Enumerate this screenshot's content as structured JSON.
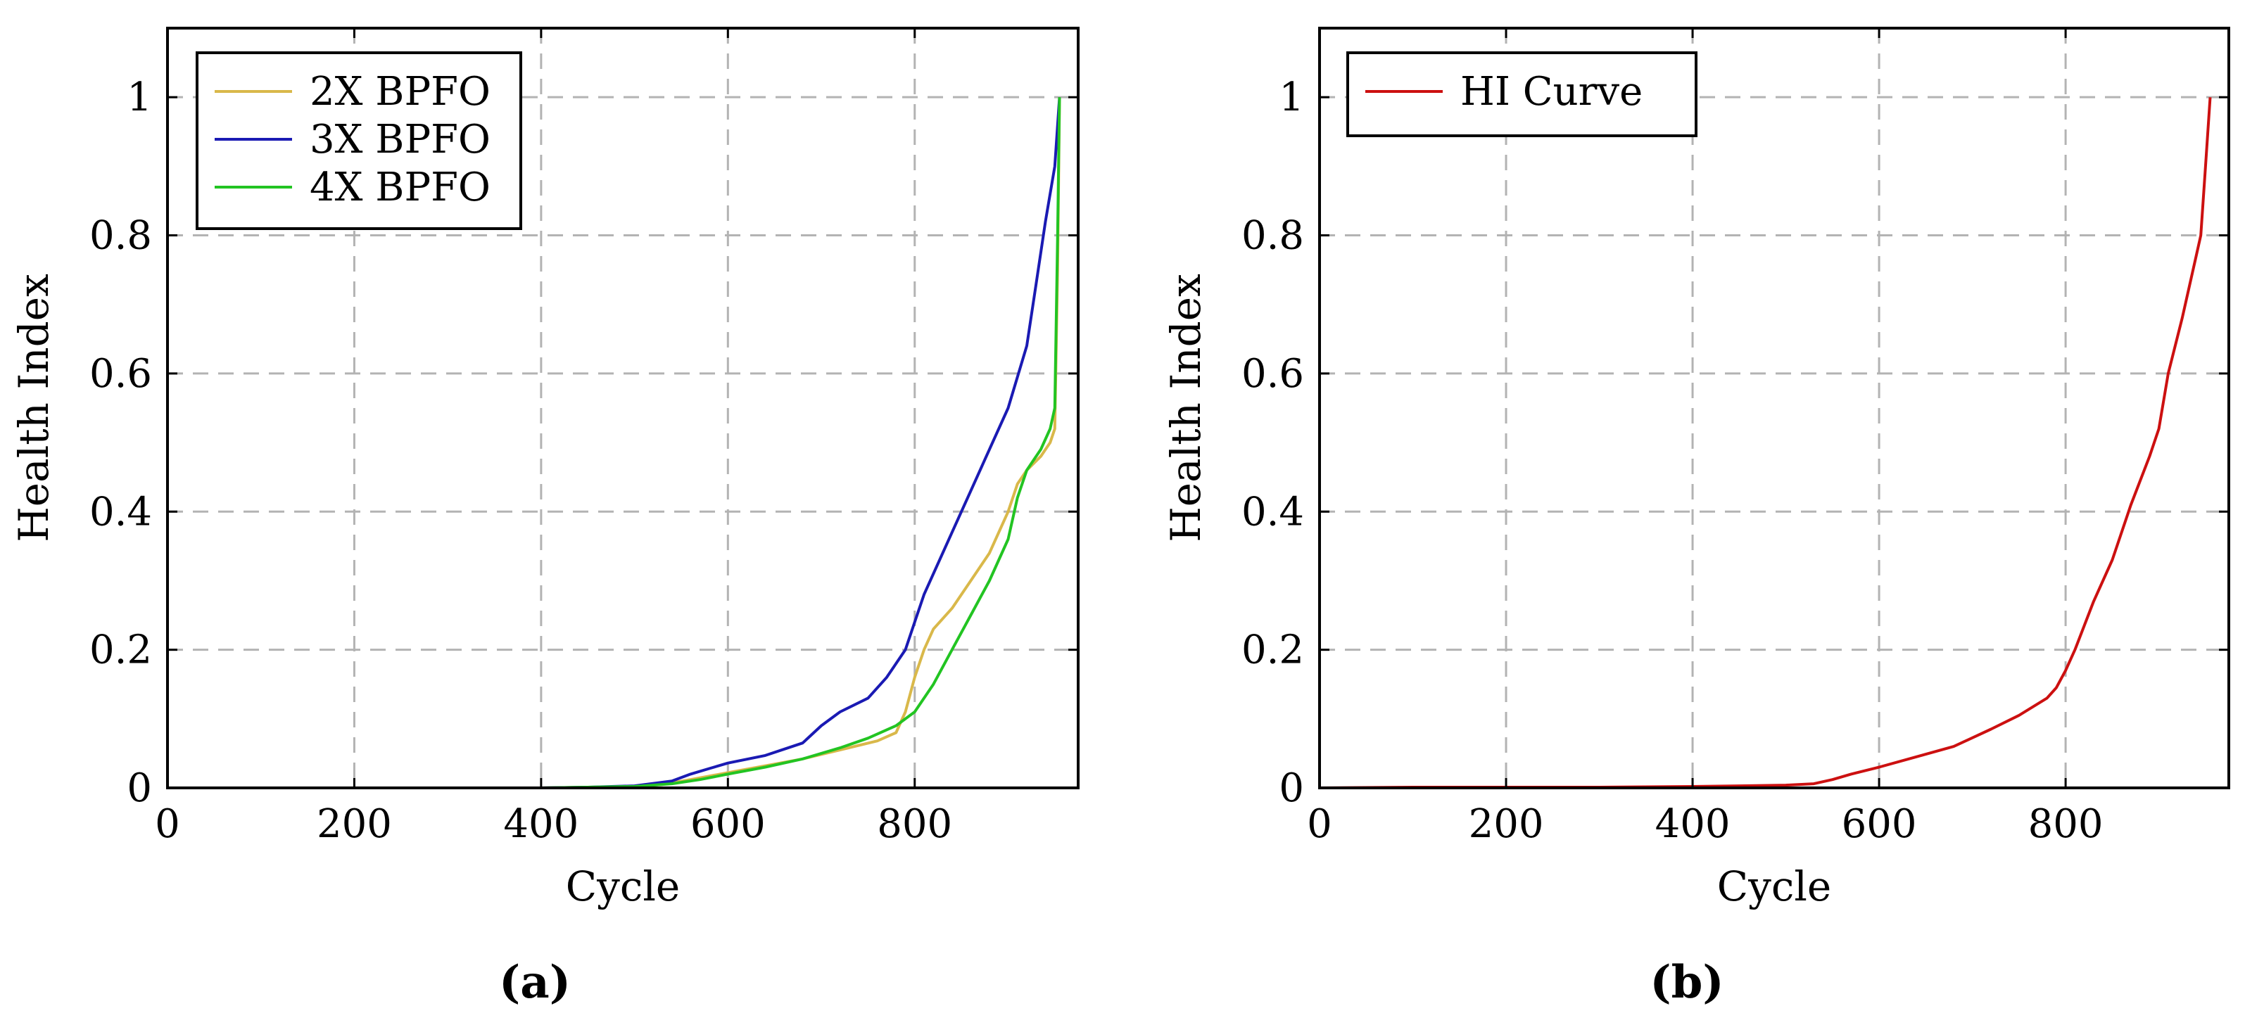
{
  "chart_data": [
    {
      "panel": "(a)",
      "type": "line",
      "title": "",
      "xlabel": "Cycle",
      "ylabel": "Health Index",
      "xlim": [
        0,
        975
      ],
      "ylim": [
        0,
        1.1
      ],
      "xticks": [
        0,
        200,
        400,
        600,
        800
      ],
      "yticks": [
        0,
        0.2,
        0.4,
        0.6,
        0.8,
        1
      ],
      "xtick_labels": [
        "0",
        "200",
        "400",
        "600",
        "800"
      ],
      "ytick_labels": [
        "0",
        "0.2",
        "0.4",
        "0.6",
        "0.8",
        "1"
      ],
      "grid": true,
      "legend_position": "top-left",
      "series": [
        {
          "name": "2X BPFO",
          "color": "#d9b84a",
          "x": [
            0,
            100,
            200,
            300,
            400,
            450,
            500,
            530,
            560,
            600,
            640,
            680,
            720,
            760,
            780,
            790,
            800,
            810,
            820,
            840,
            860,
            880,
            900,
            910,
            920,
            935,
            945,
            950,
            953,
            955
          ],
          "y": [
            0,
            0,
            0,
            0,
            0,
            0.001,
            0.002,
            0.005,
            0.012,
            0.022,
            0.032,
            0.042,
            0.055,
            0.068,
            0.08,
            0.11,
            0.16,
            0.2,
            0.23,
            0.26,
            0.3,
            0.34,
            0.4,
            0.44,
            0.46,
            0.48,
            0.5,
            0.52,
            0.75,
            1.0
          ]
        },
        {
          "name": "3X BPFO",
          "color": "#1a1ab3",
          "x": [
            0,
            100,
            200,
            300,
            400,
            450,
            500,
            540,
            560,
            580,
            600,
            640,
            680,
            700,
            720,
            750,
            770,
            780,
            790,
            800,
            810,
            820,
            840,
            860,
            880,
            900,
            920,
            930,
            940,
            950,
            955
          ],
          "y": [
            0,
            0,
            0,
            0,
            0,
            0.001,
            0.003,
            0.01,
            0.02,
            0.028,
            0.036,
            0.047,
            0.065,
            0.09,
            0.11,
            0.13,
            0.16,
            0.18,
            0.2,
            0.24,
            0.28,
            0.31,
            0.37,
            0.43,
            0.49,
            0.55,
            0.64,
            0.73,
            0.82,
            0.9,
            1.0
          ]
        },
        {
          "name": "4X BPFO",
          "color": "#22c422",
          "x": [
            0,
            100,
            200,
            300,
            400,
            450,
            500,
            540,
            570,
            600,
            640,
            680,
            720,
            750,
            780,
            800,
            820,
            840,
            860,
            880,
            900,
            910,
            920,
            935,
            945,
            950,
            953,
            955
          ],
          "y": [
            0,
            0,
            0,
            0,
            0,
            0.001,
            0.002,
            0.006,
            0.012,
            0.02,
            0.03,
            0.042,
            0.058,
            0.072,
            0.09,
            0.11,
            0.15,
            0.2,
            0.25,
            0.3,
            0.36,
            0.42,
            0.46,
            0.49,
            0.52,
            0.55,
            0.8,
            1.0
          ]
        }
      ]
    },
    {
      "panel": "(b)",
      "type": "line",
      "title": "",
      "xlabel": "Cycle",
      "ylabel": "Health Index",
      "xlim": [
        0,
        975
      ],
      "ylim": [
        0,
        1.1
      ],
      "xticks": [
        0,
        200,
        400,
        600,
        800
      ],
      "yticks": [
        0,
        0.2,
        0.4,
        0.6,
        0.8,
        1
      ],
      "xtick_labels": [
        "0",
        "200",
        "400",
        "600",
        "800"
      ],
      "ytick_labels": [
        "0",
        "0.2",
        "0.4",
        "0.6",
        "0.8",
        "1"
      ],
      "grid": true,
      "legend_position": "top-left",
      "series": [
        {
          "name": "HI Curve",
          "color": "#cc1010",
          "x": [
            0,
            100,
            200,
            300,
            400,
            450,
            500,
            530,
            550,
            570,
            600,
            640,
            680,
            720,
            750,
            780,
            790,
            800,
            810,
            830,
            850,
            870,
            890,
            900,
            910,
            925,
            940,
            945,
            950,
            955
          ],
          "y": [
            0,
            0.001,
            0.001,
            0.001,
            0.002,
            0.003,
            0.004,
            0.006,
            0.012,
            0.02,
            0.03,
            0.045,
            0.06,
            0.085,
            0.105,
            0.13,
            0.145,
            0.17,
            0.2,
            0.27,
            0.33,
            0.41,
            0.48,
            0.52,
            0.6,
            0.68,
            0.77,
            0.8,
            0.9,
            1.0
          ]
        }
      ]
    }
  ]
}
